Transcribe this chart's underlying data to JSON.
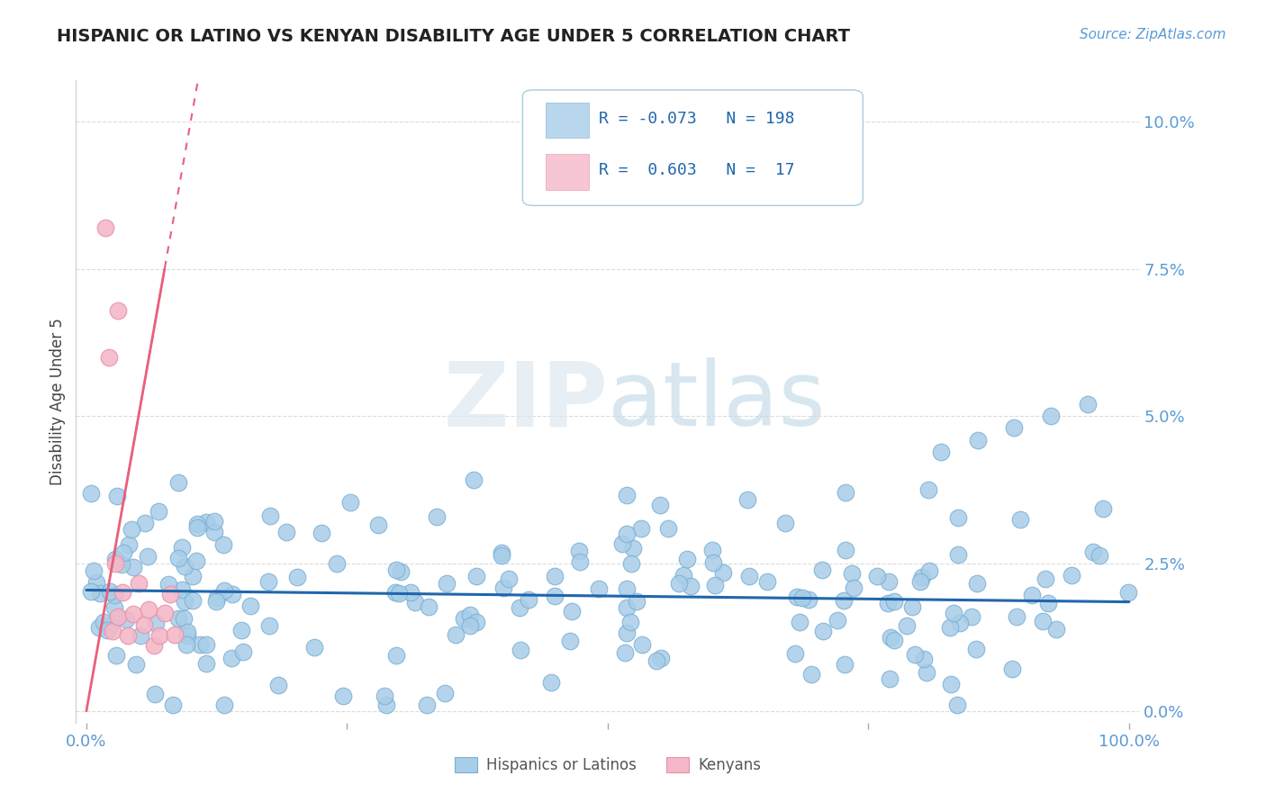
{
  "title": "HISPANIC OR LATINO VS KENYAN DISABILITY AGE UNDER 5 CORRELATION CHART",
  "source": "Source: ZipAtlas.com",
  "ylabel": "Disability Age Under 5",
  "xlim": [
    -0.01,
    1.01
  ],
  "ylim": [
    -0.002,
    0.107
  ],
  "yticks": [
    0.0,
    0.025,
    0.05,
    0.075,
    0.1
  ],
  "ytick_labels": [
    "0.0%",
    "2.5%",
    "5.0%",
    "7.5%",
    "10.0%"
  ],
  "xticks": [
    0.0,
    0.25,
    0.5,
    0.75,
    1.0
  ],
  "xtick_labels": [
    "0.0%",
    "",
    "",
    "",
    "100.0%"
  ],
  "r1_val": "-0.073",
  "n1_val": "198",
  "r2_val": "0.603",
  "n2_val": "17",
  "blue_color": "#a8cde8",
  "blue_edge_color": "#7bafd4",
  "pink_color": "#f4b8c8",
  "pink_edge_color": "#e890a8",
  "blue_line_color": "#2166ac",
  "pink_line_color": "#e8607a",
  "tick_color": "#5b9bd5",
  "title_color": "#222222",
  "source_color": "#5b9bd5",
  "legend_text_color": "#2166ac",
  "ylabel_color": "#444444",
  "background_color": "#ffffff",
  "grid_color": "#cccccc",
  "watermark_color_zip": "#c8d8e8",
  "watermark_color_atlas": "#c0d4e4"
}
